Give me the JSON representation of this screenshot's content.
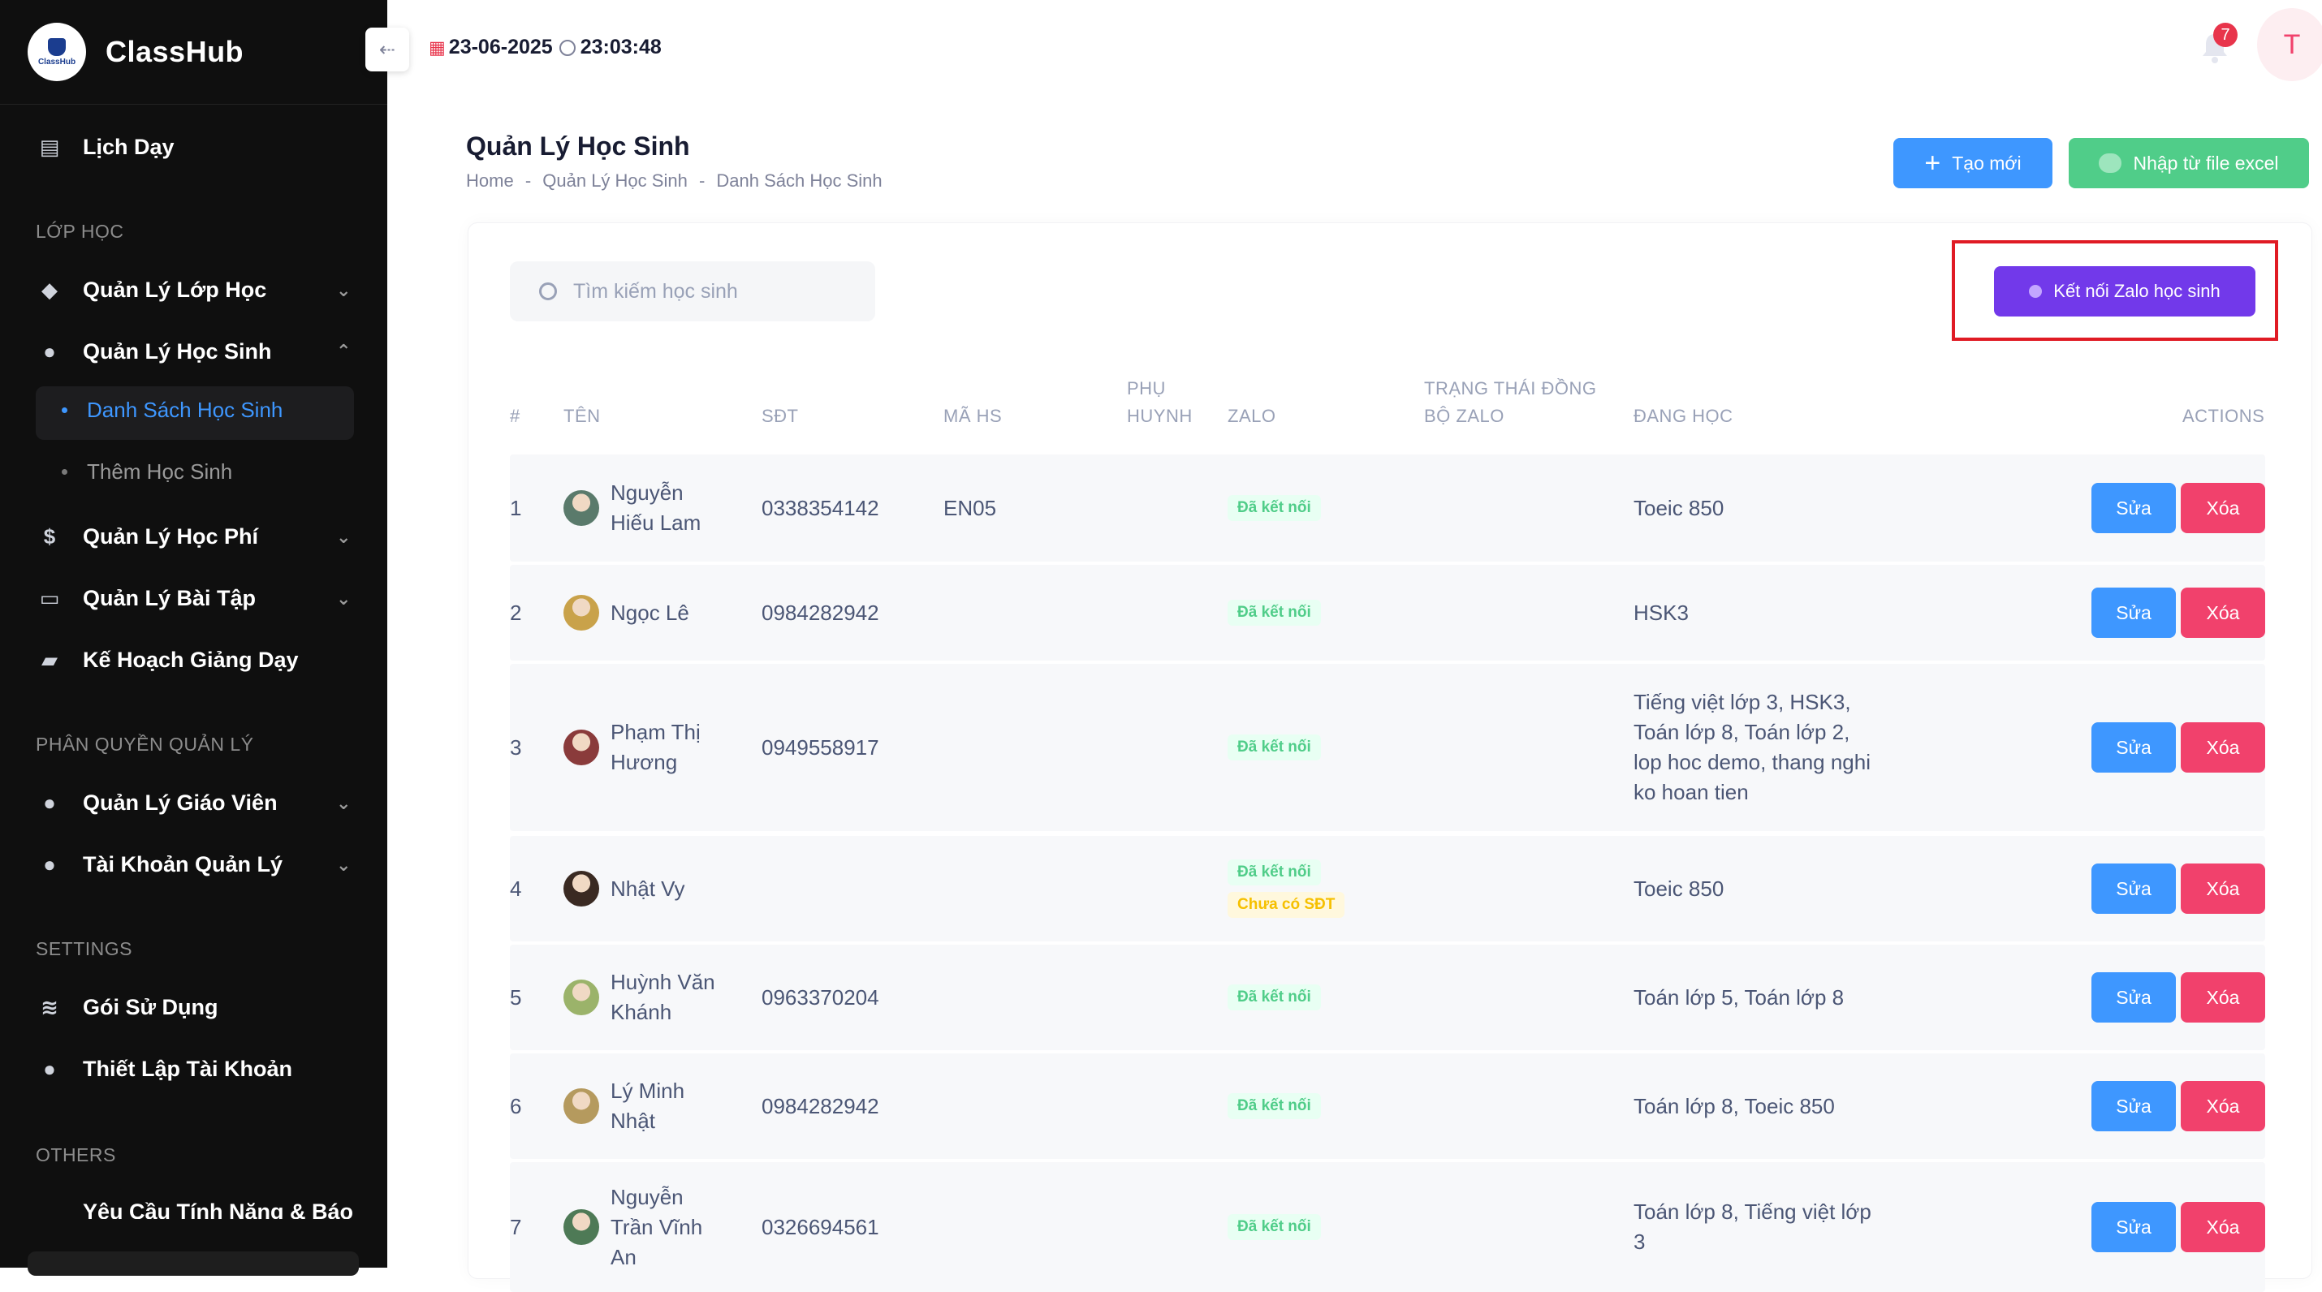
{
  "app": {
    "name": "ClassHub",
    "logo_text": "ClassHub"
  },
  "header": {
    "date": "23-06-2025",
    "time": "23:03:48",
    "notification_count": "7",
    "user_initial": "T"
  },
  "sidebar": {
    "top_item": "Lịch Dạy",
    "sections": [
      "LỚP HỌC",
      "PHÂN QUYỀN QUẢN LÝ",
      "SETTINGS",
      "OTHERS"
    ],
    "items": {
      "class_mgmt": "Quản Lý Lớp Học",
      "student_mgmt": "Quản Lý Học Sinh",
      "student_list": "Danh Sách Học Sinh",
      "add_student": "Thêm Học Sinh",
      "fee_mgmt": "Quản Lý Học Phí",
      "homework_mgmt": "Quản Lý Bài Tập",
      "teaching_plan": "Kế Hoạch Giảng Dạy",
      "teacher_mgmt": "Quản Lý Giáo Viên",
      "admin_accounts": "Tài Khoản Quản Lý",
      "plan": "Gói Sử Dụng",
      "account_settings": "Thiết Lập Tài Khoản",
      "feature_request": "Yêu Cầu Tính Năng & Báo"
    }
  },
  "page": {
    "title": "Quản Lý Học Sinh",
    "breadcrumb": [
      "Home",
      "Quản Lý Học Sinh",
      "Danh Sách Học Sinh"
    ],
    "create_label": "Tạo mới",
    "import_label": "Nhập từ file excel",
    "search_placeholder": "Tìm kiếm học sinh",
    "zalo_connect_label": "Kết nối Zalo học sinh"
  },
  "table": {
    "headers": {
      "index": "#",
      "name": "TÊN",
      "phone": "SĐT",
      "code": "MÃ HS",
      "parent_1": "PHỤ",
      "parent_2": "HUYNH",
      "zalo": "ZALO",
      "sync_1": "TRẠNG THÁI ĐỒNG",
      "sync_2": "BỘ ZALO",
      "classes": "ĐANG HỌC",
      "actions": "ACTIONS"
    },
    "edit_label": "Sửa",
    "delete_label": "Xóa",
    "rows": [
      {
        "index": "1",
        "name": [
          "Nguyễn",
          "Hiếu Lam"
        ],
        "phone": "0338354142",
        "code": "EN05",
        "zalo": [
          "Đã kết nối"
        ],
        "classes": [
          "Toeic 850"
        ]
      },
      {
        "index": "2",
        "name": [
          "Ngọc Lê"
        ],
        "phone": "0984282942",
        "code": "",
        "zalo": [
          "Đã kết nối"
        ],
        "classes": [
          "HSK3"
        ]
      },
      {
        "index": "3",
        "name": [
          "Phạm Thị",
          "Hương"
        ],
        "phone": "0949558917",
        "code": "",
        "zalo": [
          "Đã kết nối"
        ],
        "classes": [
          "Tiếng việt lớp 3, HSK3,",
          "Toán lớp 8, Toán lớp 2,",
          "lop hoc demo, thang nghi",
          "ko hoan tien"
        ]
      },
      {
        "index": "4",
        "name": [
          "Nhật Vy"
        ],
        "phone": "",
        "code": "",
        "zalo": [
          "Đã kết nối",
          "Chưa có SĐT"
        ],
        "classes": [
          "Toeic 850"
        ]
      },
      {
        "index": "5",
        "name": [
          "Huỳnh Văn",
          "Khánh"
        ],
        "phone": "0963370204",
        "code": "",
        "zalo": [
          "Đã kết nối"
        ],
        "classes": [
          "Toán lớp 5, Toán lớp 8"
        ]
      },
      {
        "index": "6",
        "name": [
          "Lý Minh",
          "Nhật"
        ],
        "phone": "0984282942",
        "code": "",
        "zalo": [
          "Đã kết nối"
        ],
        "classes": [
          "Toán lớp 8, Toeic 850"
        ]
      },
      {
        "index": "7",
        "name": [
          "Nguyễn",
          "Trần Vĩnh",
          "An"
        ],
        "phone": "0326694561",
        "code": "",
        "zalo": [
          "Đã kết nối"
        ],
        "classes": [
          "Toán lớp 8, Tiếng việt lớp",
          "3"
        ]
      }
    ]
  },
  "colors": {
    "primary": "#3e97ff",
    "success": "#50cd89",
    "danger": "#f1416c",
    "zalo": "#7239ea",
    "sidebar_bg": "#0f0f0f"
  }
}
